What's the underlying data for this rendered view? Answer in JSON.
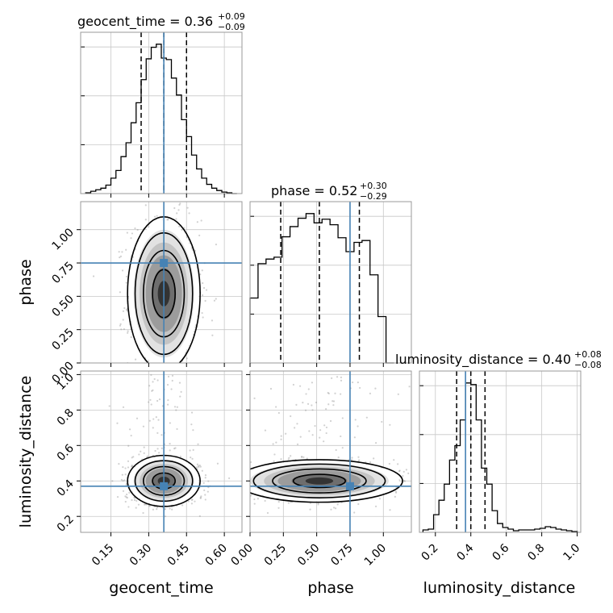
{
  "colors": {
    "truth": "#4682b4",
    "hist": "#000000",
    "grid": "#c8c8c8",
    "scatter": "#9a9a9a"
  },
  "chart_data": {
    "type": "corner",
    "parameters": [
      "geocent_time",
      "phase",
      "luminosity_distance"
    ],
    "labels": {
      "geocent_time": "geocent_time",
      "phase": "phase",
      "luminosity_distance": "luminosity_distance"
    },
    "titles": {
      "geocent_time": {
        "prefix": "geocent_time = 0.36",
        "plus": "+0.09",
        "minus": "−0.09"
      },
      "phase": {
        "prefix": "phase = 0.52",
        "plus": "+0.30",
        "minus": "−0.29"
      },
      "luminosity_distance": {
        "prefix": "luminosity_distance = 0.40",
        "plus": "+0.08",
        "minus": "−0.08"
      }
    },
    "ranges": {
      "geocent_time": [
        0.03,
        0.67
      ],
      "phase": [
        0.0,
        1.21
      ],
      "luminosity_distance": [
        0.11,
        1.02
      ]
    },
    "ticks": {
      "geocent_time": [
        "0.15",
        "0.30",
        "0.45",
        "0.60"
      ],
      "phase": [
        "0.00",
        "0.25",
        "0.50",
        "0.75",
        "1.00"
      ],
      "luminosity_distance_y": [
        "0.2",
        "0.4",
        "0.6",
        "0.8",
        "1.0"
      ],
      "luminosity_distance_x": [
        "0.2",
        "0.4",
        "0.6",
        "0.8",
        "1.0"
      ]
    },
    "quantiles": {
      "geocent_time": [
        0.27,
        0.36,
        0.45
      ],
      "phase": [
        0.23,
        0.52,
        0.82
      ],
      "luminosity_distance": [
        0.32,
        0.4,
        0.48
      ]
    },
    "truths": {
      "geocent_time": 0.36,
      "phase": 0.75,
      "luminosity_distance": 0.37
    },
    "histograms": {
      "geocent_time": {
        "edges": [
          0.05,
          0.07,
          0.09,
          0.11,
          0.13,
          0.15,
          0.17,
          0.19,
          0.21,
          0.23,
          0.25,
          0.27,
          0.29,
          0.31,
          0.33,
          0.35,
          0.37,
          0.39,
          0.41,
          0.43,
          0.45,
          0.47,
          0.49,
          0.51,
          0.53,
          0.55,
          0.57,
          0.59,
          0.61,
          0.63,
          0.65
        ],
        "counts": [
          1,
          3,
          5,
          7,
          11,
          20,
          30,
          48,
          66,
          92,
          118,
          148,
          175,
          190,
          194,
          176,
          174,
          150,
          128,
          96,
          74,
          50,
          32,
          20,
          12,
          7,
          4,
          2,
          1,
          0
        ]
      },
      "phase": {
        "edges": [
          0.0,
          0.06,
          0.12,
          0.18,
          0.24,
          0.3,
          0.36,
          0.42,
          0.48,
          0.54,
          0.6,
          0.66,
          0.72,
          0.78,
          0.84,
          0.9,
          0.96,
          1.02,
          1.08
        ],
        "counts": [
          70,
          107,
          112,
          114,
          136,
          147,
          156,
          161,
          151,
          155,
          149,
          135,
          120,
          130,
          132,
          95,
          50,
          0
        ]
      },
      "luminosity_distance": {
        "edges": [
          0.13,
          0.16,
          0.19,
          0.22,
          0.25,
          0.28,
          0.31,
          0.34,
          0.37,
          0.4,
          0.43,
          0.46,
          0.49,
          0.52,
          0.55,
          0.58,
          0.61,
          0.64,
          0.67,
          0.7,
          0.73,
          0.76,
          0.79,
          0.82,
          0.85,
          0.88,
          0.91,
          0.94,
          0.97,
          1.0
        ],
        "counts": [
          3,
          4,
          22,
          40,
          60,
          90,
          108,
          140,
          186,
          184,
          140,
          80,
          60,
          27,
          11,
          6,
          4,
          2,
          3,
          3,
          3,
          4,
          5,
          7,
          6,
          4,
          3,
          2,
          1
        ]
      }
    },
    "pairs": [
      {
        "x": "geocent_time",
        "y": "phase",
        "center": [
          0.36,
          0.52
        ],
        "sigma": [
          0.06,
          0.24
        ],
        "correlation": 0.0
      },
      {
        "x": "geocent_time",
        "y": "luminosity_distance",
        "center": [
          0.36,
          0.4
        ],
        "sigma": [
          0.06,
          0.06
        ],
        "correlation": 0.0
      },
      {
        "x": "phase",
        "y": "luminosity_distance",
        "center": [
          0.52,
          0.4
        ],
        "sigma": [
          0.26,
          0.05
        ],
        "correlation": 0.0
      }
    ]
  }
}
